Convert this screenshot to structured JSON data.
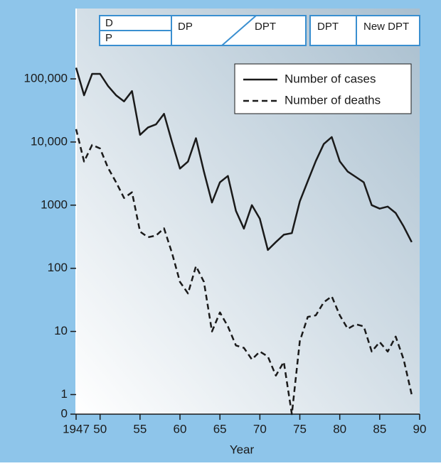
{
  "chart_data": {
    "type": "line",
    "x_label": "Year",
    "x": [
      1947,
      1948,
      1949,
      1950,
      1951,
      1952,
      1953,
      1954,
      1955,
      1956,
      1957,
      1958,
      1959,
      1960,
      1961,
      1962,
      1963,
      1964,
      1965,
      1966,
      1967,
      1968,
      1969,
      1970,
      1971,
      1972,
      1973,
      1974,
      1975,
      1976,
      1977,
      1978,
      1979,
      1980,
      1981,
      1982,
      1983,
      1984,
      1985,
      1986,
      1987,
      1988,
      1989
    ],
    "series": [
      {
        "name": "Number of cases",
        "color": "#1a1a1a",
        "dash": false,
        "values": [
          150000,
          55000,
          120000,
          120000,
          77000,
          55000,
          44000,
          64000,
          13000,
          17000,
          19000,
          28000,
          10000,
          3800,
          4900,
          11500,
          3400,
          1100,
          2300,
          2900,
          810,
          425,
          1000,
          610,
          195,
          260,
          340,
          360,
          1150,
          2400,
          5000,
          9300,
          12000,
          4950,
          3400,
          2800,
          2300,
          1000,
          880,
          950,
          750,
          460,
          260
        ]
      },
      {
        "name": "Number of deaths",
        "color": "#1a1a1a",
        "dash": true,
        "values": [
          16000,
          4900,
          9000,
          7900,
          3900,
          2300,
          1300,
          1600,
          380,
          310,
          330,
          430,
          175,
          61,
          40,
          108,
          61,
          10,
          20,
          12,
          6,
          5.5,
          3.6,
          4.8,
          4,
          2,
          3.3,
          0,
          7,
          17,
          18,
          29,
          36,
          18,
          11,
          13,
          12,
          4.8,
          6.8,
          4.8,
          8.3,
          3.6,
          1
        ]
      }
    ],
    "xlim": [
      1947,
      1990
    ],
    "xticks": [
      {
        "value": 1947,
        "label": "1947"
      },
      {
        "value": 1950,
        "label": "50"
      },
      {
        "value": 1955,
        "label": "55"
      },
      {
        "value": 1960,
        "label": "60"
      },
      {
        "value": 1965,
        "label": "65"
      },
      {
        "value": 1970,
        "label": "70"
      },
      {
        "value": 1975,
        "label": "75"
      },
      {
        "value": 1980,
        "label": "80"
      },
      {
        "value": 1985,
        "label": "85"
      },
      {
        "value": 1990,
        "label": "90"
      }
    ],
    "ylim": [
      0.49,
      1300000
    ],
    "y_log": true,
    "yticks": [
      0,
      1,
      10,
      100,
      1000,
      {
        "value": 10000,
        "label": "10,000"
      },
      {
        "value": 100000,
        "label": "100,000"
      }
    ],
    "legend": "top-right",
    "vaccine_labels": [
      "D",
      "P",
      "DP",
      "DPT",
      "DPT",
      "New DPT"
    ]
  }
}
